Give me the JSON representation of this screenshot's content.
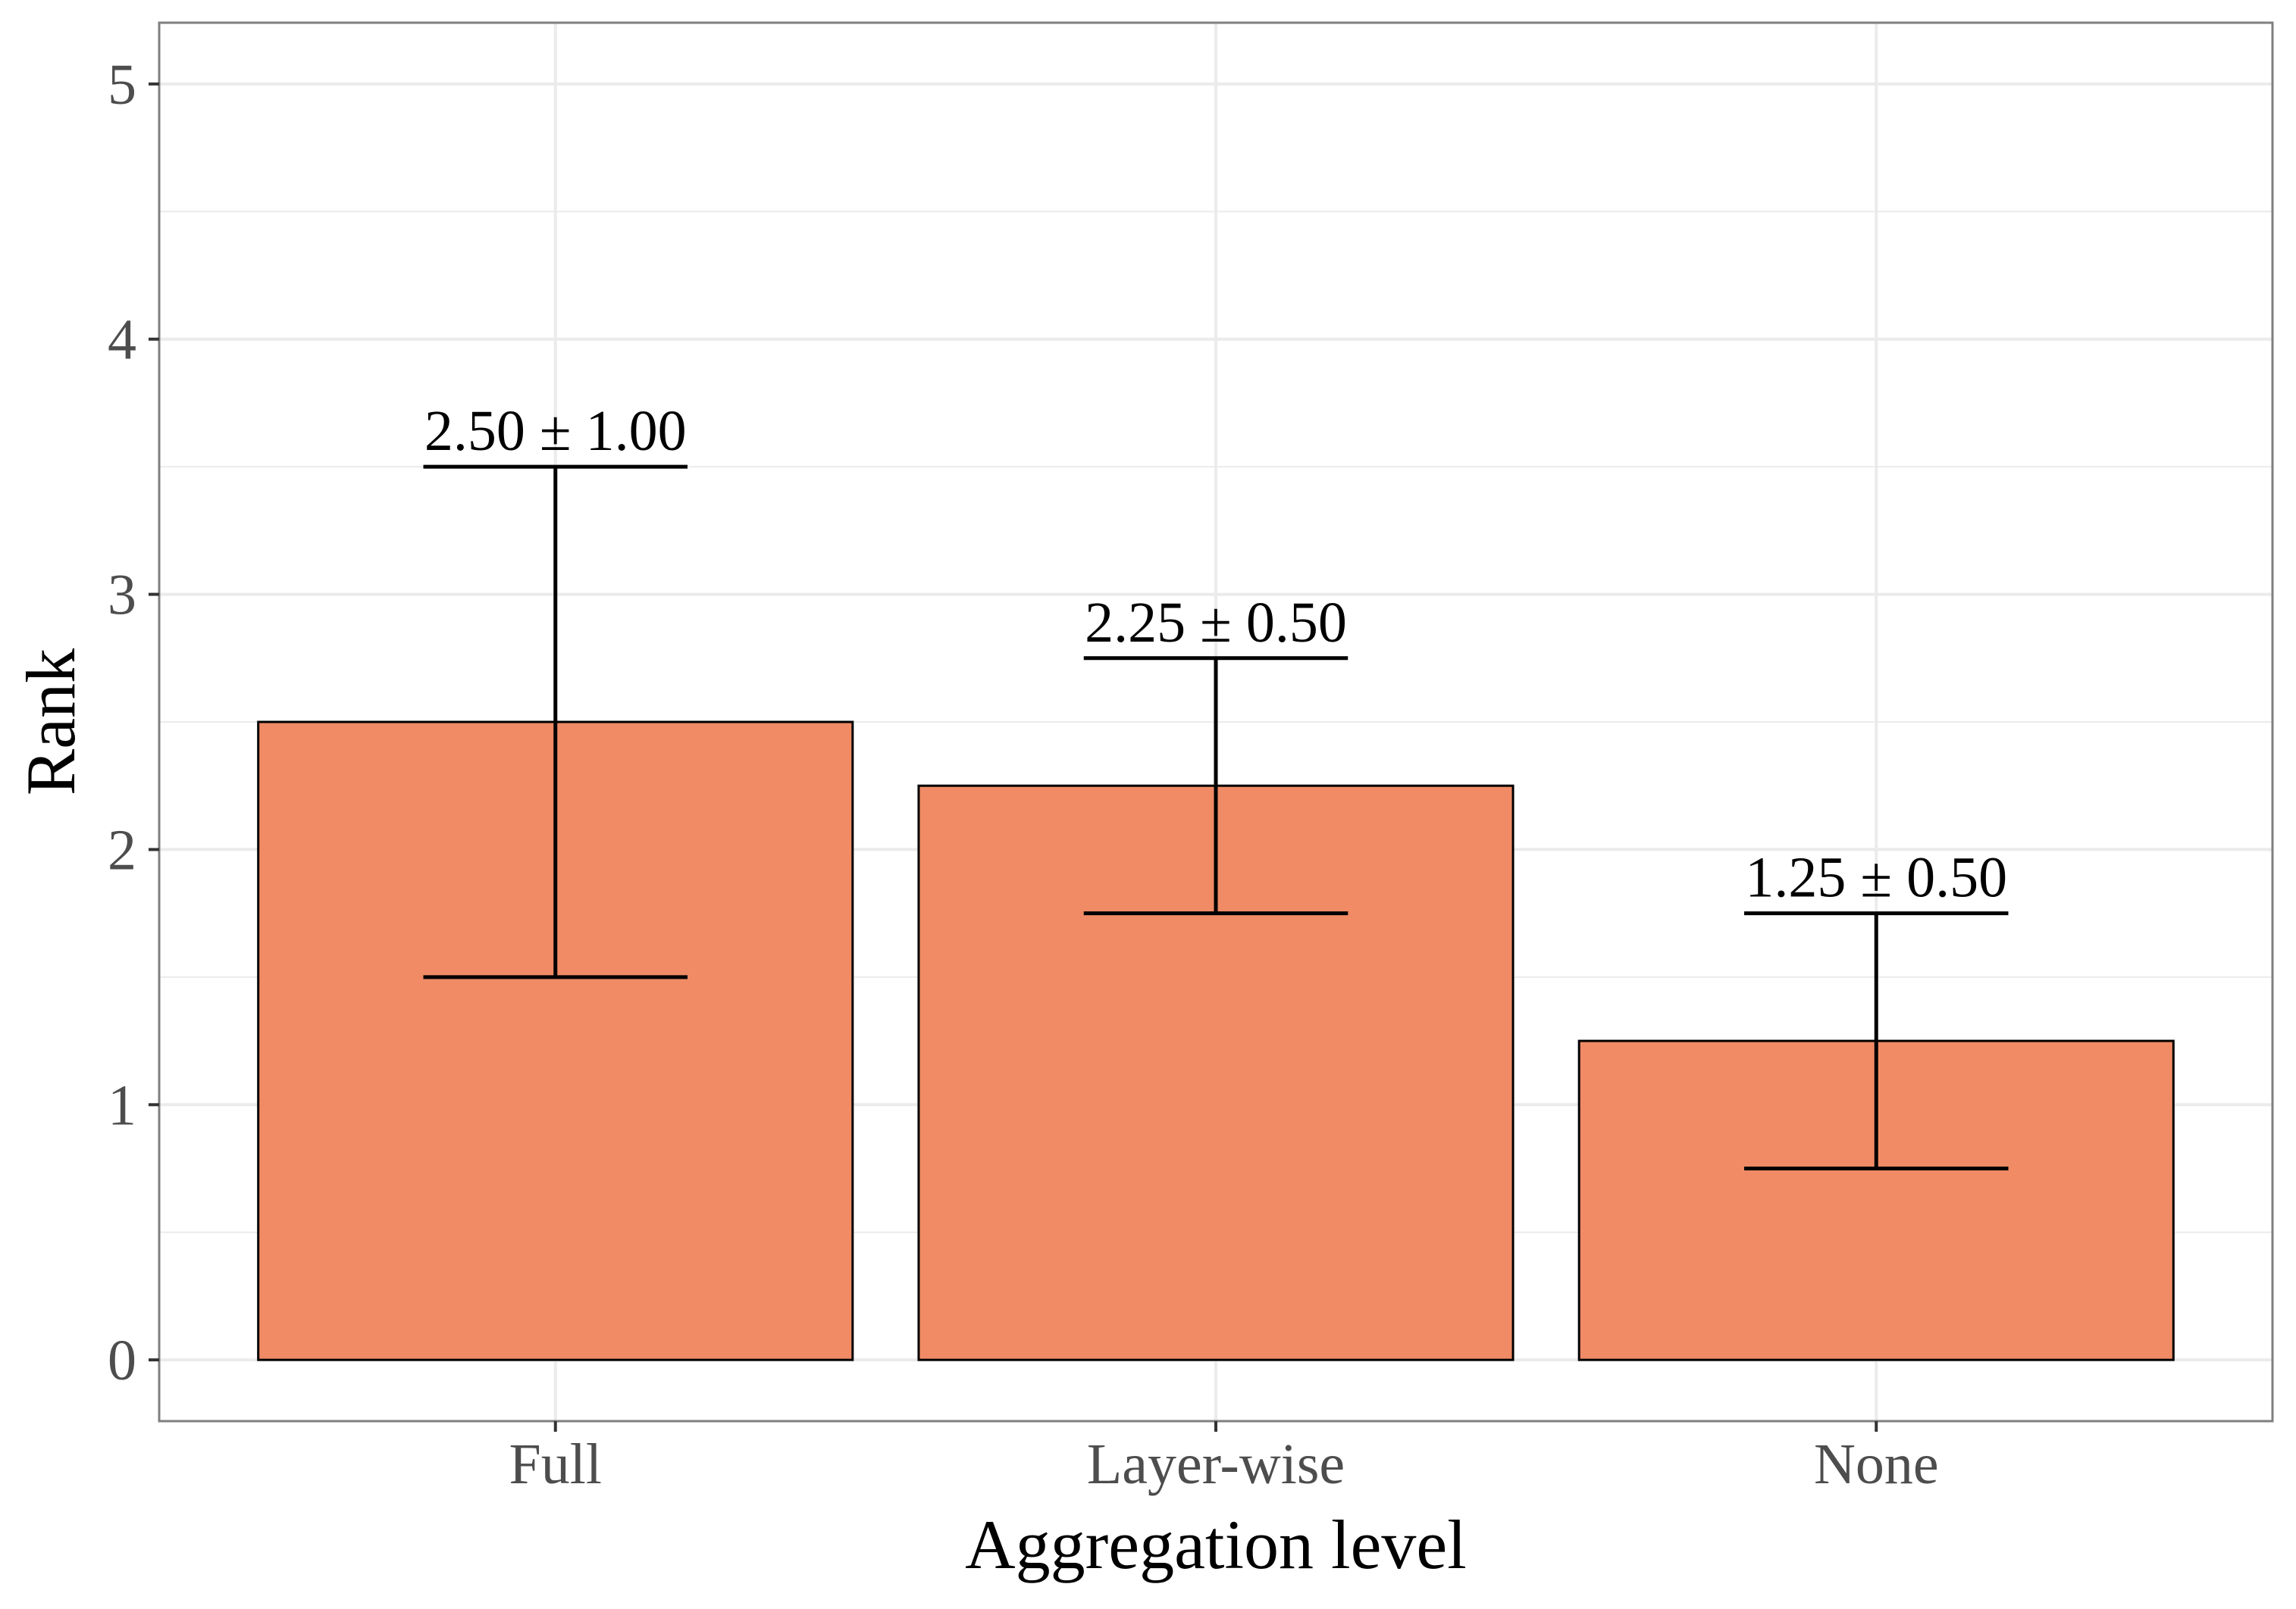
{
  "chart_data": {
    "type": "bar",
    "categories": [
      "Full",
      "Layer-wise",
      "None"
    ],
    "values": [
      2.5,
      2.25,
      1.25
    ],
    "errors": [
      1.0,
      0.5,
      0.5
    ],
    "data_labels": [
      "2.50 ± 1.00",
      "2.25 ± 0.50",
      "1.25 ± 0.50"
    ],
    "xlabel": "Aggregation level",
    "ylabel": "Rank",
    "ylim": [
      -0.24,
      5.24
    ],
    "yticks": [
      0,
      1,
      2,
      3,
      4,
      5
    ],
    "grid": true,
    "colors": {
      "bar": "#f08b65",
      "bar_outline": "#000000",
      "grid": "#ebebeb",
      "panel_border": "#7f7f7f",
      "tick_text": "#4d4d4d"
    }
  }
}
